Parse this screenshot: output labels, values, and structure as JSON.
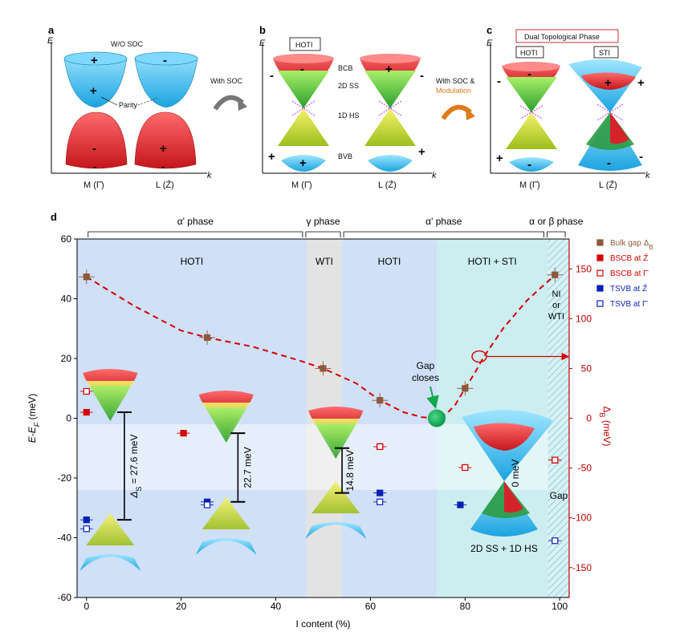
{
  "panels": {
    "a": {
      "letter": "a",
      "yaxis": "E",
      "xaxis": "k",
      "title": "W/O SOC",
      "parity_label": "Parity",
      "x_labels": [
        "M (Γ̄)",
        "L (Z̄)"
      ],
      "signs_top": [
        "+",
        "+",
        "-"
      ],
      "signs_bottom": [
        "-",
        "+",
        "-",
        "-"
      ],
      "arrow_label": "With SOC"
    },
    "b": {
      "letter": "b",
      "yaxis": "E",
      "xaxis": "k",
      "phase_box": "HOTI",
      "labels": [
        "BCB",
        "2D SS",
        "1D HS",
        "BVB"
      ],
      "x_labels": [
        "M (Γ̄)",
        "L (Z̄)"
      ],
      "signs": [
        "-",
        "-",
        "+",
        "-",
        "+",
        "+",
        "+"
      ],
      "arrow_label": "With SOC &",
      "arrow_label2": "Modulation"
    },
    "c": {
      "letter": "c",
      "yaxis": "E",
      "xaxis": "k",
      "phase_box": "Dual Topological Phase",
      "sub_boxes": [
        "HOTI",
        "STI"
      ],
      "x_labels": [
        "M (Γ̄)",
        "L (Z̄)"
      ],
      "signs": [
        "-",
        "-",
        "+",
        "+",
        "+",
        "-",
        "-"
      ]
    },
    "d": {
      "letter": "d"
    }
  },
  "chart_data": {
    "type": "scatter",
    "xlabel": "I content (%)",
    "ylabel": "E-E",
    "ylabel_sub": "F",
    "ylabel_unit": "(meV)",
    "y2label": "Δ",
    "y2label_sub": "B",
    "y2label_unit": "(meV)",
    "xlim": [
      -2,
      102
    ],
    "ylim": [
      -60,
      60
    ],
    "y2lim": [
      -180,
      180
    ],
    "x_ticks": [
      0,
      20,
      40,
      60,
      80,
      100
    ],
    "y_ticks": [
      -60,
      -40,
      -20,
      0,
      20,
      40,
      60
    ],
    "y2_ticks": [
      -150,
      -100,
      -50,
      0,
      50,
      100,
      150
    ],
    "phases_top": [
      {
        "label": "α' phase",
        "from": 0,
        "to": 46
      },
      {
        "label": "γ phase",
        "from": 46,
        "to": 54
      },
      {
        "label": "α' phase",
        "from": 54,
        "to": 97
      },
      {
        "label": "α or β phase",
        "from": 97,
        "to": 102
      }
    ],
    "regions": [
      {
        "label": "HOTI",
        "from": -2,
        "to": 46.5,
        "color": "#cfe0f7"
      },
      {
        "label": "WTI",
        "from": 46.5,
        "to": 54,
        "color": "#e3e3e3"
      },
      {
        "label": "HOTI",
        "from": 54,
        "to": 74,
        "color": "#cfe0f7"
      },
      {
        "label": "HOTI + STI",
        "from": 74,
        "to": 97.5,
        "color": "#cdeef0"
      }
    ],
    "region_ni": [
      "NI",
      "or",
      "WTI"
    ],
    "series": [
      {
        "name": "Bulk gap Δ",
        "name_sub": "B",
        "color": "#8d5a3b",
        "axis": "y2",
        "marker": "filled",
        "x": [
          0,
          25.5,
          50,
          62,
          80,
          99
        ],
        "y": [
          142,
          81,
          50,
          18,
          30,
          144
        ]
      },
      {
        "name": "BSCB at Z̄",
        "color": "#d50000",
        "axis": "y",
        "marker": "filled",
        "x": [
          0,
          20.5,
          62,
          80,
          99
        ],
        "y": [
          2,
          -5,
          -9.5,
          -16.5,
          -14
        ]
      },
      {
        "name": "BSCB at Γ̄",
        "color": "#d50000",
        "axis": "y",
        "marker": "open",
        "x": [
          0,
          62,
          80,
          99
        ],
        "y": [
          9,
          -9.5,
          -16.5,
          -14
        ]
      },
      {
        "name": "TSVB at Z̄",
        "color": "#0b1fb5",
        "axis": "y",
        "marker": "filled",
        "x": [
          0,
          25.5,
          62,
          79
        ],
        "y": [
          -34,
          -28,
          -25,
          -29
        ]
      },
      {
        "name": "TSVB at Γ̄",
        "color": "#0b1fb5",
        "axis": "y",
        "marker": "open",
        "x": [
          0,
          25.5,
          62,
          99
        ],
        "y": [
          -37,
          -29,
          -28,
          -41
        ]
      }
    ],
    "fit_curve": {
      "x": [
        0,
        10,
        20,
        25.5,
        35,
        45,
        50,
        57,
        62,
        67,
        71,
        74,
        76,
        78,
        80,
        82,
        84,
        88,
        93,
        99
      ],
      "y": [
        142,
        113,
        88,
        81,
        72,
        58,
        50,
        35,
        18,
        6,
        1,
        0,
        4,
        14,
        30,
        45,
        62,
        90,
        118,
        144
      ]
    },
    "gap_close": {
      "x": 74,
      "y": 0,
      "label1": "Gap",
      "label2": "closes"
    },
    "gaps": [
      {
        "label": "Δ",
        "sub": "S",
        "value": "= 27.6 meV",
        "x": 8,
        "top": 2,
        "bottom": -34
      },
      {
        "label": "",
        "sub": "",
        "value": "22.7 meV",
        "x": 32,
        "top": -5,
        "bottom": -28
      },
      {
        "label": "",
        "sub": "",
        "value": "14.8 meV",
        "x": 54,
        "top": -10,
        "bottom": -25
      },
      {
        "label": "",
        "sub": "",
        "value": "0 meV",
        "x": 91,
        "top": 0,
        "bottom": 0
      }
    ],
    "annotations": [
      "2D SS + 1D HS",
      "Gap"
    ]
  }
}
